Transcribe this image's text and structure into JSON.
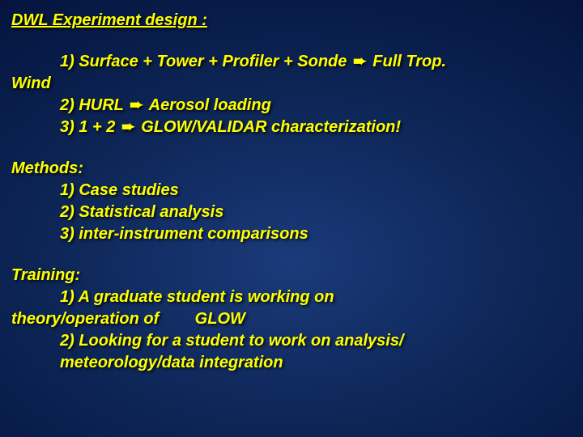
{
  "title": "DWL Experiment design :",
  "design": {
    "line1_a": "1) Surface + Tower + Profiler + Sonde ",
    "line1_b": " Full Trop.",
    "line1_wrap": "Wind",
    "line2_a": "2) HURL ",
    "line2_b": " Aerosol loading",
    "line3_a": "3) 1 + 2 ",
    "line3_b": " GLOW/VALIDAR characterization!"
  },
  "methods": {
    "heading": "Methods:",
    "item1": "1) Case studies",
    "item2": "2) Statistical analysis",
    "item3": "3) inter-instrument comparisons"
  },
  "training": {
    "heading": "Training:",
    "item1_a": "1) A graduate student is working on",
    "item1_b": "theory/operation of        GLOW",
    "item2_a": "2) Looking for a student to work on analysis/",
    "item2_b": "meteorology/data integration"
  },
  "arrow": "➨",
  "colors": {
    "text": "#ffff00",
    "bg_center": "#1a3a7a",
    "bg_edge": "#020818"
  }
}
